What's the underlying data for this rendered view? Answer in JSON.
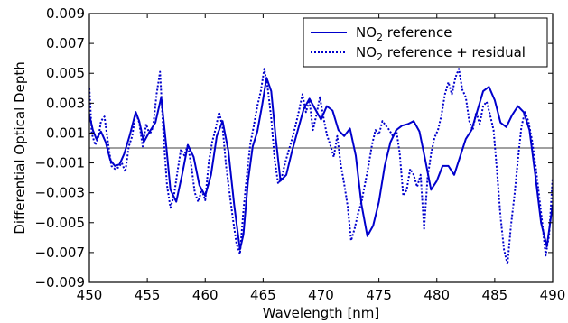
{
  "chart_data": {
    "type": "line",
    "xlabel": "Wavelength [nm]",
    "ylabel": "Differential Optical Depth",
    "xlim": [
      450,
      490
    ],
    "ylim": [
      -0.009,
      0.009
    ],
    "xticks": [
      "450",
      "455",
      "460",
      "465",
      "470",
      "475",
      "480",
      "485",
      "490"
    ],
    "yticks": [
      "0.009",
      "0.007",
      "0.005",
      "0.003",
      "0.001",
      "−0.001",
      "−0.003",
      "−0.005",
      "−0.007",
      "−0.009"
    ],
    "zero_line": 0.0,
    "grid": false,
    "legend": {
      "placement": "top-right",
      "entries": [
        {
          "prefix": "NO",
          "sub": "2",
          "suffix": " reference"
        },
        {
          "prefix": "NO",
          "sub": "2",
          "suffix": " reference + residual"
        }
      ]
    },
    "colors": {
      "series": "#0000cc",
      "zero_line": "#808080"
    },
    "series": [
      {
        "name": "NO2 reference",
        "style": "solid",
        "x": [
          450.0,
          450.3,
          450.6,
          451.0,
          451.4,
          451.8,
          452.2,
          452.6,
          453.0,
          453.5,
          454.0,
          454.3,
          454.7,
          455.2,
          455.7,
          456.2,
          456.6,
          457.0,
          457.5,
          458.0,
          458.5,
          459.0,
          459.5,
          460.0,
          460.5,
          461.0,
          461.5,
          462.0,
          462.5,
          463.0,
          463.3,
          463.7,
          464.1,
          464.5,
          464.9,
          465.3,
          465.7,
          466.1,
          466.5,
          467.0,
          467.5,
          468.0,
          468.5,
          469.0,
          469.5,
          470.0,
          470.5,
          471.0,
          471.5,
          472.0,
          472.5,
          473.0,
          473.5,
          474.0,
          474.5,
          475.0,
          475.5,
          476.0,
          476.5,
          477.0,
          477.5,
          478.0,
          478.5,
          479.0,
          479.5,
          480.0,
          480.5,
          481.0,
          481.5,
          482.0,
          482.5,
          483.0,
          483.5,
          484.0,
          484.5,
          485.0,
          485.5,
          486.0,
          486.5,
          487.0,
          487.5,
          488.0,
          488.5,
          489.0,
          489.5,
          490.0
        ],
        "values": [
          0.0022,
          0.0012,
          0.0006,
          0.0011,
          0.0004,
          -0.0008,
          -0.0012,
          -0.0011,
          -0.0004,
          0.0009,
          0.0024,
          0.0018,
          0.0004,
          0.0011,
          0.0017,
          0.0034,
          0.0004,
          -0.0028,
          -0.0036,
          -0.0018,
          0.0002,
          -0.0006,
          -0.0025,
          -0.0032,
          -0.0018,
          0.0008,
          0.0018,
          -0.0002,
          -0.0038,
          -0.0068,
          -0.0058,
          -0.0022,
          0.0001,
          0.0011,
          0.0028,
          0.0047,
          0.0038,
          0.0006,
          -0.0022,
          -0.0018,
          -0.0002,
          0.0012,
          0.0026,
          0.0033,
          0.0026,
          0.0019,
          0.0028,
          0.0025,
          0.0012,
          0.0008,
          0.0013,
          -0.0005,
          -0.0038,
          -0.0059,
          -0.0052,
          -0.0036,
          -0.0012,
          0.0004,
          0.0012,
          0.0015,
          0.0016,
          0.0018,
          0.0011,
          -0.0008,
          -0.0028,
          -0.0022,
          -0.0012,
          -0.0012,
          -0.0018,
          -0.0006,
          0.0006,
          0.0012,
          0.0025,
          0.0038,
          0.0041,
          0.0032,
          0.0017,
          0.0014,
          0.0022,
          0.0028,
          0.0024,
          0.0012,
          -0.0018,
          -0.005,
          -0.0066,
          -0.0038
        ]
      },
      {
        "name": "NO2 reference + residual",
        "style": "dotted",
        "x": [
          450.0,
          450.2,
          450.5,
          450.8,
          451.0,
          451.3,
          451.6,
          451.9,
          452.2,
          452.5,
          452.8,
          453.1,
          453.4,
          453.7,
          454.0,
          454.3,
          454.6,
          454.9,
          455.2,
          455.5,
          455.8,
          456.1,
          456.4,
          456.7,
          457.0,
          457.3,
          457.6,
          457.9,
          458.2,
          458.5,
          458.8,
          459.1,
          459.4,
          459.7,
          460.0,
          460.3,
          460.6,
          460.9,
          461.2,
          461.5,
          461.8,
          462.1,
          462.4,
          462.7,
          463.0,
          463.3,
          463.6,
          463.9,
          464.2,
          464.5,
          464.8,
          465.1,
          465.4,
          465.7,
          466.0,
          466.3,
          466.6,
          466.9,
          467.2,
          467.5,
          467.8,
          468.1,
          468.4,
          468.7,
          469.0,
          469.3,
          469.6,
          469.9,
          470.2,
          470.5,
          470.8,
          471.1,
          471.4,
          471.7,
          472.0,
          472.3,
          472.6,
          472.9,
          473.2,
          473.5,
          473.8,
          474.1,
          474.4,
          474.7,
          475.0,
          475.3,
          475.6,
          475.9,
          476.2,
          476.5,
          476.8,
          477.1,
          477.4,
          477.7,
          478.0,
          478.3,
          478.6,
          478.9,
          479.2,
          479.5,
          479.8,
          480.1,
          480.4,
          480.7,
          481.0,
          481.3,
          481.6,
          481.9,
          482.2,
          482.5,
          482.8,
          483.1,
          483.4,
          483.7,
          484.0,
          484.3,
          484.6,
          484.9,
          485.2,
          485.5,
          485.8,
          486.1,
          486.4,
          486.7,
          487.0,
          487.3,
          487.6,
          487.9,
          488.2,
          488.5,
          488.8,
          489.1,
          489.4,
          489.7,
          490.0
        ],
        "values": [
          0.004,
          0.001,
          0.0002,
          0.0008,
          0.0018,
          0.0021,
          0.0004,
          -0.0012,
          -0.0014,
          -0.0013,
          -0.001,
          -0.0016,
          0.0001,
          0.0008,
          0.0024,
          0.0017,
          0.0001,
          0.0016,
          0.0009,
          0.0014,
          0.0036,
          0.0051,
          0.0008,
          -0.0025,
          -0.004,
          -0.0032,
          -0.0016,
          -0.0001,
          -0.0005,
          0.0002,
          -0.0012,
          -0.003,
          -0.0036,
          -0.0028,
          -0.0035,
          -0.001,
          0.0004,
          0.0013,
          0.0024,
          0.0014,
          -0.0012,
          -0.003,
          -0.0048,
          -0.0064,
          -0.0071,
          -0.0042,
          -0.0018,
          0.0003,
          0.0015,
          0.0028,
          0.0038,
          0.0053,
          0.004,
          0.002,
          -0.0008,
          -0.0024,
          -0.002,
          -0.001,
          -0.0002,
          0.0006,
          0.0015,
          0.0025,
          0.0036,
          0.0024,
          0.0032,
          0.0012,
          0.0022,
          0.0034,
          0.0021,
          0.0009,
          0.0002,
          -0.0006,
          0.0008,
          -0.0011,
          -0.0024,
          -0.0039,
          -0.0062,
          -0.0054,
          -0.0044,
          -0.0036,
          -0.0024,
          -0.0012,
          0.0002,
          0.0012,
          0.0009,
          0.0018,
          0.0015,
          0.0012,
          0.0008,
          0.0012,
          -0.0004,
          -0.0032,
          -0.0028,
          -0.0014,
          -0.0018,
          -0.0026,
          -0.0018,
          -0.0054,
          -0.002,
          -0.0004,
          0.0007,
          0.0012,
          0.0022,
          0.0036,
          0.0044,
          0.0036,
          0.0047,
          0.0053,
          0.0039,
          0.0034,
          0.0018,
          0.0012,
          0.0024,
          0.0016,
          0.0028,
          0.0031,
          0.0022,
          0.0012,
          -0.0016,
          -0.0046,
          -0.0068,
          -0.0078,
          -0.0052,
          -0.0032,
          -0.0008,
          0.0014,
          0.0024,
          0.0018,
          0.0006,
          -0.001,
          -0.003,
          -0.005,
          -0.0072,
          -0.0058,
          -0.002
        ]
      }
    ]
  }
}
